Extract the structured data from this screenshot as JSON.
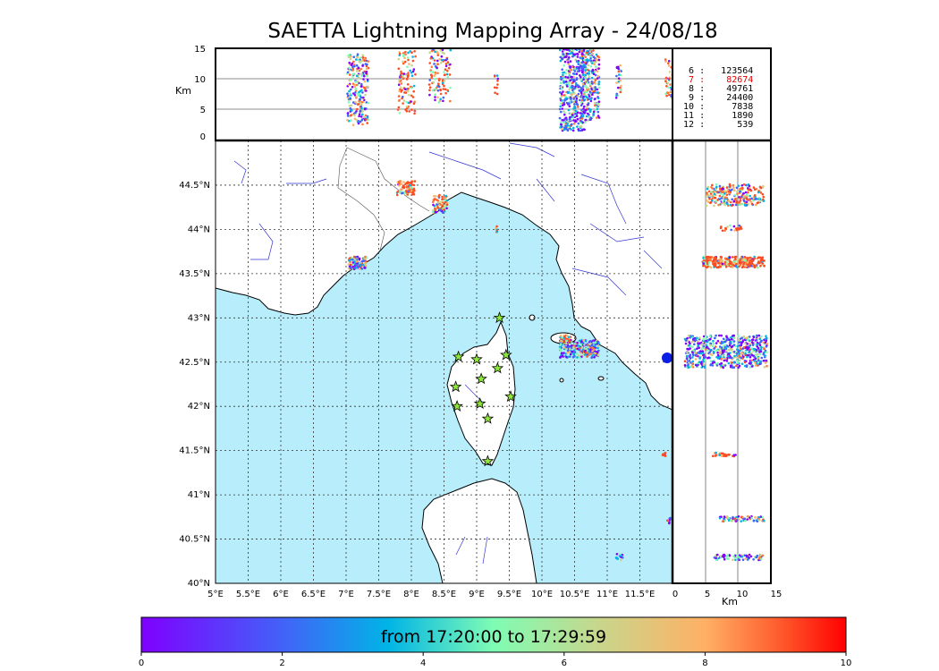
{
  "title": "SAETTA Lightning Mapping Array - 24/08/18",
  "colorbar": {
    "label": "from 17:20:00 to 17:29:59",
    "ticks": [
      "0",
      "2",
      "4",
      "6",
      "8",
      "10"
    ]
  },
  "altitude_panel": {
    "unit": "Km",
    "ticks": [
      "0",
      "5",
      "10",
      "15"
    ]
  },
  "profile_panel": {
    "unit": "Km",
    "ticks": [
      "0",
      "5",
      "10",
      "15"
    ]
  },
  "map": {
    "lon_ticks": [
      "5°E",
      "5.5°E",
      "6°E",
      "6.5°E",
      "7°E",
      "7.5°E",
      "8°E",
      "8.5°E",
      "9°E",
      "9.5°E",
      "10°E",
      "10.5°E",
      "11°E",
      "11.5°E"
    ],
    "lat_ticks": [
      "40°N",
      "40.5°N",
      "41°N",
      "41.5°N",
      "42°N",
      "42.5°N",
      "43°N",
      "43.5°N",
      "44°N",
      "44.5°N"
    ],
    "stations": [
      {
        "lon": 9.35,
        "lat": 43.0
      },
      {
        "lon": 9.45,
        "lat": 42.58
      },
      {
        "lon": 8.72,
        "lat": 42.56
      },
      {
        "lon": 9.0,
        "lat": 42.53
      },
      {
        "lon": 9.32,
        "lat": 42.43
      },
      {
        "lon": 9.07,
        "lat": 42.31
      },
      {
        "lon": 8.68,
        "lat": 42.22
      },
      {
        "lon": 9.52,
        "lat": 42.11
      },
      {
        "lon": 9.05,
        "lat": 42.03
      },
      {
        "lon": 8.7,
        "lat": 42.0
      },
      {
        "lon": 9.17,
        "lat": 41.86
      },
      {
        "lon": 9.17,
        "lat": 41.38
      }
    ]
  },
  "counts": [
    {
      "label": "6",
      "value": "123564",
      "color": "#000000"
    },
    {
      "label": "7",
      "value": "82674",
      "color": "#e00000"
    },
    {
      "label": "8",
      "value": "49761",
      "color": "#000000"
    },
    {
      "label": "9",
      "value": "24400",
      "color": "#000000"
    },
    {
      "label": "10",
      "value": "7838",
      "color": "#000000"
    },
    {
      "label": "11",
      "value": "1890",
      "color": "#000000"
    },
    {
      "label": "12",
      "value": "539",
      "color": "#000000"
    }
  ]
}
